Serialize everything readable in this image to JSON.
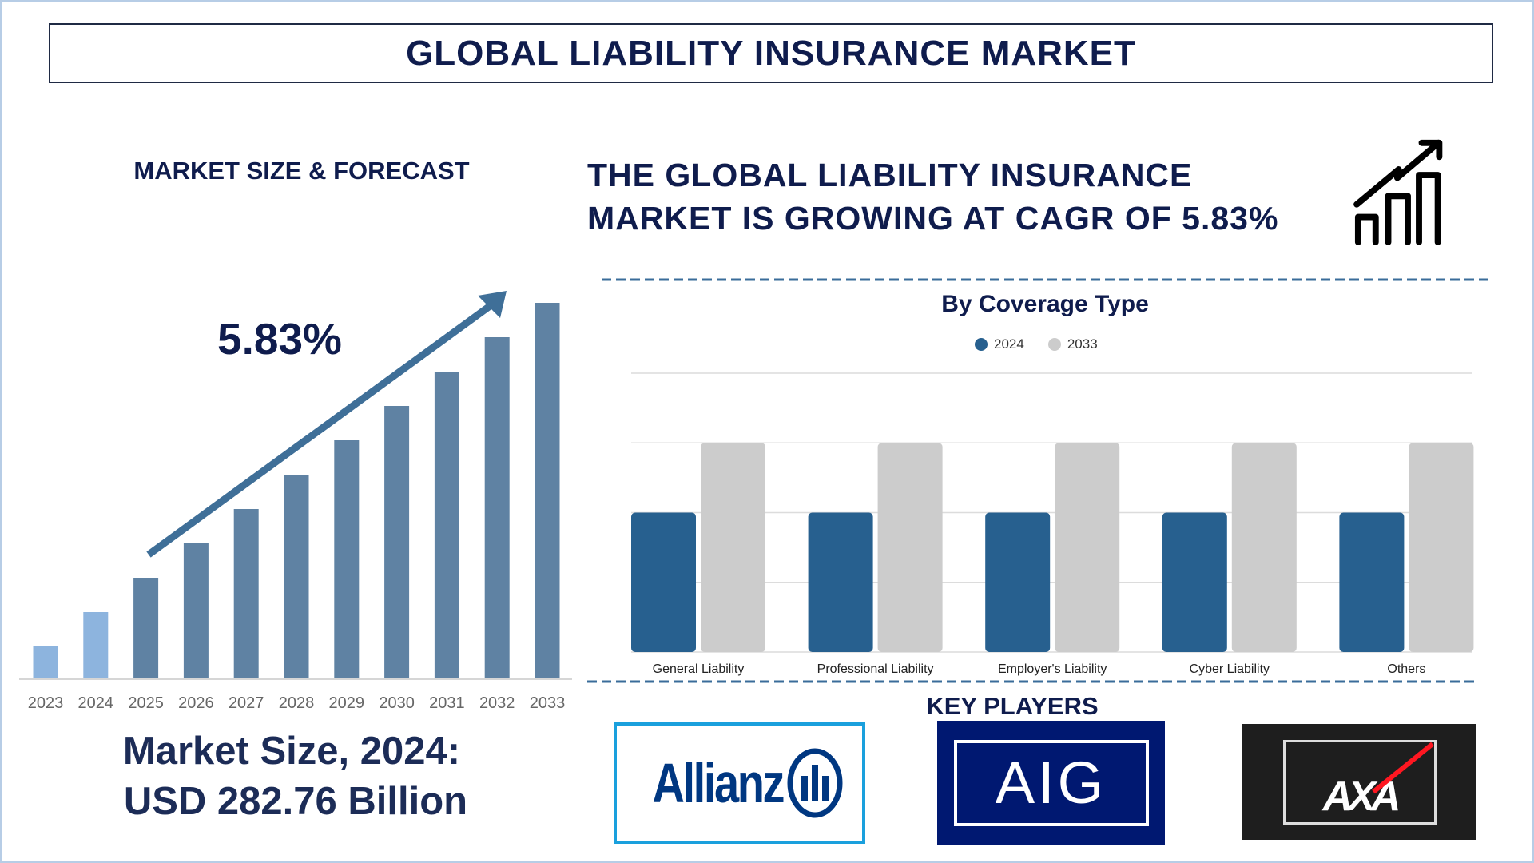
{
  "header": {
    "title": "GLOBAL LIABILITY INSURANCE MARKET"
  },
  "left": {
    "section_title": "MARKET SIZE & FORECAST",
    "cagr_label": "5.83%",
    "market_size_line1": "Market Size, 2024:",
    "market_size_line2": "USD 282.76 Billion"
  },
  "right": {
    "headline_line1": "THE GLOBAL LIABILITY INSURANCE",
    "headline_line2": "MARKET IS GROWING AT CAGR OF 5.83%",
    "headline_icon": "growth-chart-arrow-icon",
    "key_players_title": "KEY PLAYERS",
    "key_players": [
      {
        "name": "Allianz",
        "bg": "#ffffff",
        "accent": "#003781"
      },
      {
        "name": "AIG",
        "bg": "#001871",
        "accent": "#ffffff"
      },
      {
        "name": "AXA",
        "bg": "#1e1e1e",
        "accent": "#ff1721"
      }
    ]
  },
  "chart_data": [
    {
      "type": "bar",
      "categories": [
        "2023",
        "2024",
        "2025",
        "2026",
        "2027",
        "2028",
        "2029",
        "2030",
        "2031",
        "2032",
        "2033"
      ],
      "values": [
        1,
        2,
        3,
        4,
        5,
        6,
        7,
        8,
        9,
        10,
        11
      ],
      "colors": {
        "historic": "#8db4de",
        "forecast": "#5f82a3",
        "trend_arrow": "#3f6f98"
      },
      "trend_arrow": true,
      "grid": false
    },
    {
      "type": "bar",
      "title": "By Coverage Type",
      "categories": [
        "General Liability",
        "Professional Liability",
        "Employer's Liability",
        "Cyber Liability",
        "Others"
      ],
      "series": [
        {
          "name": "2024",
          "color": "#27608f",
          "values": [
            2,
            2,
            2,
            2,
            2
          ]
        },
        {
          "name": "2033",
          "color": "#cccccc",
          "values": [
            3,
            3,
            3,
            3,
            3
          ]
        }
      ],
      "ylim": [
        0,
        4
      ],
      "grid": true,
      "legend": "top-center"
    }
  ]
}
